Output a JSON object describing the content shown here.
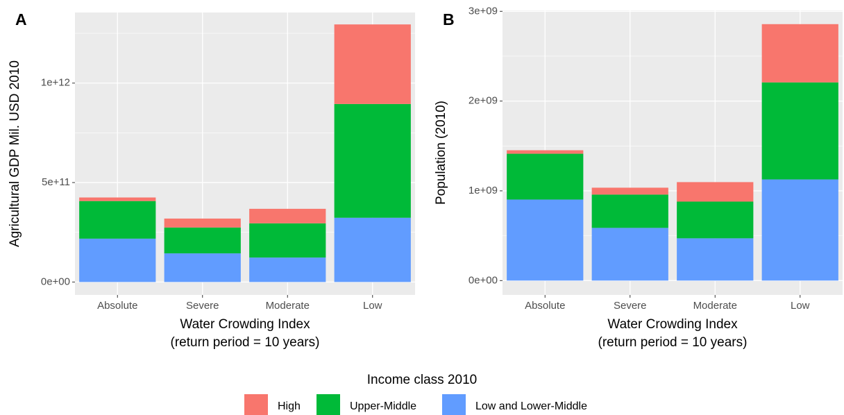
{
  "chart_data": [
    {
      "type": "stacked_bar",
      "panel_label": "A",
      "ylabel": "Agricultural GDP Mil. USD 2010",
      "xlabel": [
        "Water Crowding Index",
        "(return period = 10 years)"
      ],
      "legend_title": "Income class 2010",
      "categories": [
        "Absolute",
        "Severe",
        "Moderate",
        "Low"
      ],
      "series": [
        {
          "name": "High",
          "color": "#F8766D",
          "values": [
            18000000000,
            45000000000,
            73000000000,
            400000000000
          ]
        },
        {
          "name": "Upper-Middle",
          "color": "#00BA38",
          "values": [
            189000000000,
            130000000000,
            172000000000,
            572000000000
          ]
        },
        {
          "name": "Low and Lower-Middle",
          "color": "#619CFF",
          "values": [
            218000000000,
            144000000000,
            123000000000,
            323000000000
          ]
        }
      ],
      "ylim": [
        -65000000000,
        1355000000000
      ],
      "yticks": [
        {
          "value": 0,
          "label": "0e+00"
        },
        {
          "value": 500000000000,
          "label": "5e+11"
        },
        {
          "value": 1000000000000,
          "label": "1e+12"
        }
      ],
      "grid": true
    },
    {
      "type": "stacked_bar",
      "panel_label": "B",
      "ylabel": "Population (2010)",
      "xlabel": [
        "Water Crowding Index",
        "(return period = 10 years)"
      ],
      "categories": [
        "Absolute",
        "Severe",
        "Moderate",
        "Low"
      ],
      "series": [
        {
          "name": "High",
          "color": "#F8766D",
          "values": [
            39000000,
            77000000,
            217000000,
            649000000
          ]
        },
        {
          "name": "Upper-Middle",
          "color": "#00BA38",
          "values": [
            510000000,
            371000000,
            409000000,
            1081000000
          ]
        },
        {
          "name": "Low and Lower-Middle",
          "color": "#619CFF",
          "values": [
            903000000,
            587000000,
            471000000,
            1127000000
          ]
        }
      ],
      "ylim": [
        -160000000,
        3010000000
      ],
      "yticks": [
        {
          "value": 0,
          "label": "0e+00"
        },
        {
          "value": 1000000000,
          "label": "1e+09"
        },
        {
          "value": 2000000000,
          "label": "2e+09"
        },
        {
          "value": 3000000000,
          "label": "3e+09"
        }
      ],
      "grid": true
    }
  ]
}
